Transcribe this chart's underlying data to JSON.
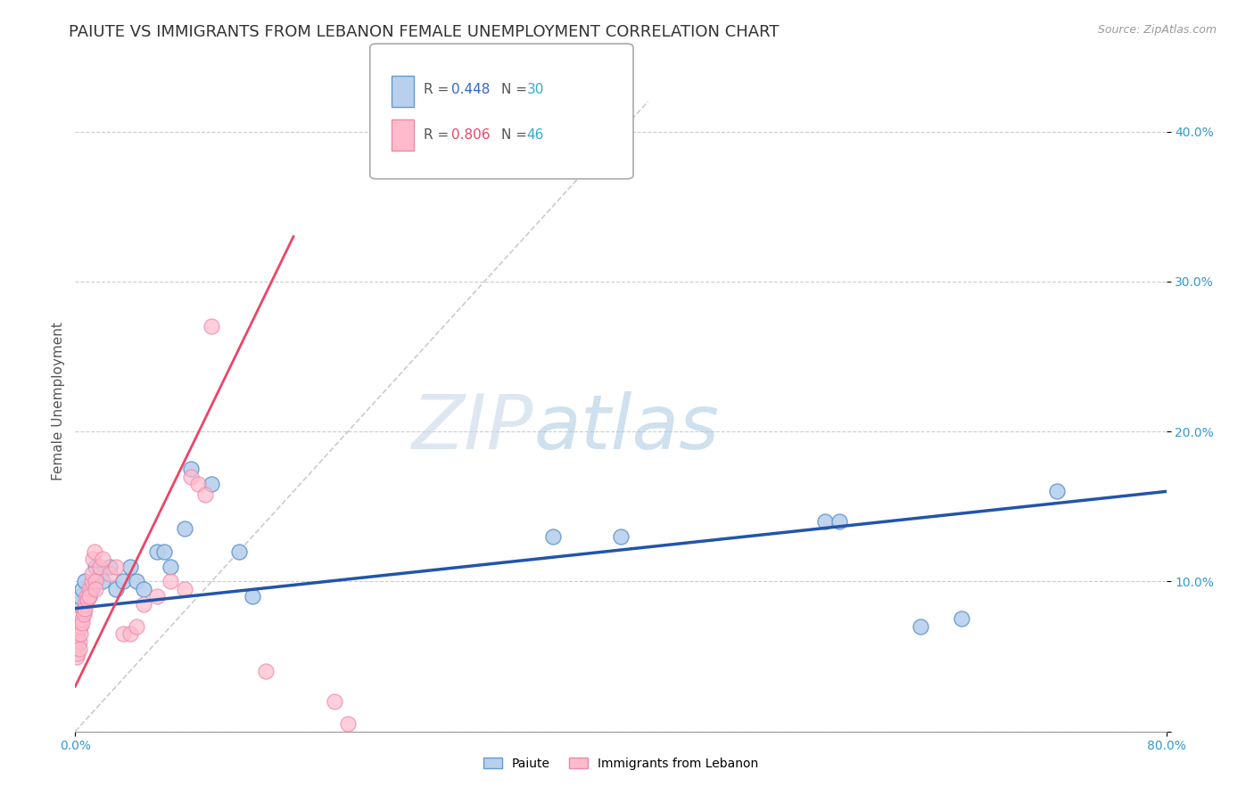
{
  "title": "PAIUTE VS IMMIGRANTS FROM LEBANON FEMALE UNEMPLOYMENT CORRELATION CHART",
  "source": "Source: ZipAtlas.com",
  "ylabel": "Female Unemployment",
  "watermark_zip": "ZIP",
  "watermark_atlas": "atlas",
  "series": [
    {
      "name": "Paiute",
      "R": 0.448,
      "N": 30,
      "face_color": "#b8d0ee",
      "edge_color": "#6699cc",
      "points": [
        [
          0.001,
          0.085
        ],
        [
          0.003,
          0.09
        ],
        [
          0.005,
          0.095
        ],
        [
          0.007,
          0.1
        ],
        [
          0.01,
          0.09
        ],
        [
          0.012,
          0.095
        ],
        [
          0.015,
          0.11
        ],
        [
          0.018,
          0.105
        ],
        [
          0.02,
          0.1
        ],
        [
          0.025,
          0.11
        ],
        [
          0.03,
          0.095
        ],
        [
          0.035,
          0.1
        ],
        [
          0.04,
          0.11
        ],
        [
          0.045,
          0.1
        ],
        [
          0.05,
          0.095
        ],
        [
          0.06,
          0.12
        ],
        [
          0.065,
          0.12
        ],
        [
          0.07,
          0.11
        ],
        [
          0.08,
          0.135
        ],
        [
          0.085,
          0.175
        ],
        [
          0.1,
          0.165
        ],
        [
          0.12,
          0.12
        ],
        [
          0.13,
          0.09
        ],
        [
          0.35,
          0.13
        ],
        [
          0.4,
          0.13
        ],
        [
          0.55,
          0.14
        ],
        [
          0.56,
          0.14
        ],
        [
          0.62,
          0.07
        ],
        [
          0.65,
          0.075
        ],
        [
          0.72,
          0.16
        ]
      ],
      "trend_x": [
        0.0,
        0.8
      ],
      "trend_y": [
        0.082,
        0.16
      ],
      "trend_color": "#2255aa",
      "trend_lw": 2.5
    },
    {
      "name": "Immigrants from Lebanon",
      "R": 0.806,
      "N": 46,
      "face_color": "#ffbbcc",
      "edge_color": "#ee88aa",
      "points": [
        [
          0.001,
          0.06
        ],
        [
          0.001,
          0.058
        ],
        [
          0.001,
          0.055
        ],
        [
          0.001,
          0.05
        ],
        [
          0.002,
          0.062
        ],
        [
          0.002,
          0.058
        ],
        [
          0.002,
          0.052
        ],
        [
          0.003,
          0.068
        ],
        [
          0.003,
          0.06
        ],
        [
          0.003,
          0.055
        ],
        [
          0.004,
          0.07
        ],
        [
          0.004,
          0.065
        ],
        [
          0.005,
          0.075
        ],
        [
          0.005,
          0.072
        ],
        [
          0.006,
          0.08
        ],
        [
          0.006,
          0.078
        ],
        [
          0.007,
          0.085
        ],
        [
          0.007,
          0.082
        ],
        [
          0.008,
          0.09
        ],
        [
          0.009,
          0.088
        ],
        [
          0.01,
          0.095
        ],
        [
          0.01,
          0.09
        ],
        [
          0.012,
          0.1
        ],
        [
          0.012,
          0.105
        ],
        [
          0.013,
          0.115
        ],
        [
          0.014,
          0.12
        ],
        [
          0.015,
          0.1
        ],
        [
          0.015,
          0.095
        ],
        [
          0.018,
          0.11
        ],
        [
          0.02,
          0.115
        ],
        [
          0.025,
          0.105
        ],
        [
          0.03,
          0.11
        ],
        [
          0.035,
          0.065
        ],
        [
          0.04,
          0.065
        ],
        [
          0.045,
          0.07
        ],
        [
          0.05,
          0.085
        ],
        [
          0.06,
          0.09
        ],
        [
          0.07,
          0.1
        ],
        [
          0.08,
          0.095
        ],
        [
          0.085,
          0.17
        ],
        [
          0.09,
          0.165
        ],
        [
          0.095,
          0.158
        ],
        [
          0.1,
          0.27
        ],
        [
          0.14,
          0.04
        ],
        [
          0.19,
          0.02
        ],
        [
          0.2,
          0.005
        ]
      ],
      "trend_x": [
        0.0,
        0.16
      ],
      "trend_y": [
        0.03,
        0.33
      ],
      "trend_color": "#ee4466",
      "trend_lw": 2.0
    }
  ],
  "diag_line": {
    "x": [
      0.0,
      0.42
    ],
    "y": [
      0.0,
      0.42
    ],
    "color": "#cccccc",
    "lw": 1.2
  },
  "xlim": [
    0.0,
    0.8
  ],
  "ylim": [
    0.0,
    0.44
  ],
  "yticks": [
    0.0,
    0.1,
    0.2,
    0.3,
    0.4
  ],
  "ytick_labels": [
    "",
    "10.0%",
    "20.0%",
    "30.0%",
    "40.0%"
  ],
  "xticks": [
    0.0,
    0.8
  ],
  "xtick_labels": [
    "0.0%",
    "80.0%"
  ],
  "grid_color": "#cccccc",
  "bg_color": "#ffffff",
  "title_fontsize": 13,
  "ylabel_fontsize": 11,
  "tick_fontsize": 10,
  "source_fontsize": 9,
  "legend_R_color_1": "#3366cc",
  "legend_R_color_2": "#ee4466",
  "legend_N_color": "#33aacc"
}
